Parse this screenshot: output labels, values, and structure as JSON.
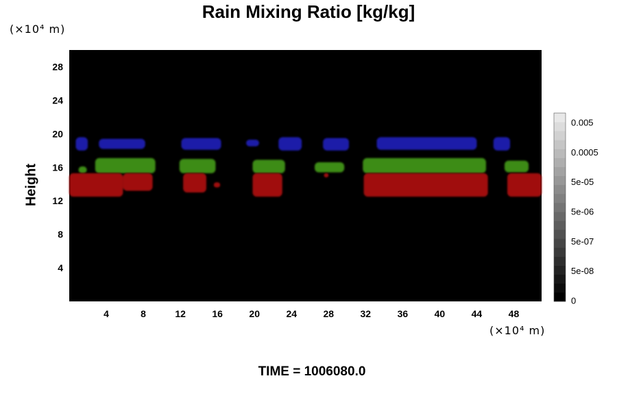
{
  "chart_data": {
    "type": "heatmap",
    "title": "Rain Mixing Ratio [kg/kg]",
    "ylabel": "Height",
    "x_unit": "(×10⁴ m)",
    "y_unit": "(×10⁴ m)",
    "footer": "TIME = 1006080.0",
    "xlim": [
      0,
      51
    ],
    "ylim": [
      0,
      30
    ],
    "x_ticks": [
      4,
      8,
      12,
      16,
      20,
      24,
      28,
      32,
      36,
      40,
      44,
      48
    ],
    "y_ticks": [
      4,
      8,
      12,
      16,
      20,
      24,
      28
    ],
    "background_color": "#000000",
    "colorbar": {
      "ticks": [
        "0",
        "5e-08",
        "5e-07",
        "5e-06",
        "5e-05",
        "0.0005",
        "0.005"
      ],
      "color_low": "#000000",
      "color_high": "#e8e8e8",
      "levels": 21
    },
    "bands": [
      {
        "name": "blue",
        "color": "#1a1aa8",
        "blobs": [
          {
            "x0": 0.7,
            "x1": 2.0,
            "y0": 18.0,
            "y1": 19.6
          },
          {
            "x0": 3.2,
            "x1": 8.2,
            "y0": 18.2,
            "y1": 19.4
          },
          {
            "x0": 12.1,
            "x1": 16.4,
            "y0": 18.1,
            "y1": 19.5
          },
          {
            "x0": 19.1,
            "x1": 20.5,
            "y0": 18.5,
            "y1": 19.3
          },
          {
            "x0": 22.6,
            "x1": 25.1,
            "y0": 18.0,
            "y1": 19.6
          },
          {
            "x0": 27.4,
            "x1": 30.2,
            "y0": 18.0,
            "y1": 19.5
          },
          {
            "x0": 33.2,
            "x1": 44.0,
            "y0": 18.1,
            "y1": 19.6
          },
          {
            "x0": 45.8,
            "x1": 47.6,
            "y0": 18.0,
            "y1": 19.6
          }
        ]
      },
      {
        "name": "green",
        "color": "#3c8c14",
        "blobs": [
          {
            "x0": 1.0,
            "x1": 1.9,
            "y0": 15.3,
            "y1": 16.1
          },
          {
            "x0": 2.8,
            "x1": 9.3,
            "y0": 15.3,
            "y1": 17.1
          },
          {
            "x0": 11.9,
            "x1": 15.8,
            "y0": 15.3,
            "y1": 17.0
          },
          {
            "x0": 19.8,
            "x1": 23.3,
            "y0": 15.3,
            "y1": 16.9
          },
          {
            "x0": 26.5,
            "x1": 29.7,
            "y0": 15.4,
            "y1": 16.6
          },
          {
            "x0": 31.7,
            "x1": 45.0,
            "y0": 15.3,
            "y1": 17.1
          },
          {
            "x0": 47.0,
            "x1": 49.6,
            "y0": 15.4,
            "y1": 16.8
          }
        ]
      },
      {
        "name": "red",
        "color": "#a01010",
        "blobs": [
          {
            "x0": 0.0,
            "x1": 5.8,
            "y0": 12.5,
            "y1": 15.3
          },
          {
            "x0": 5.8,
            "x1": 9.0,
            "y0": 13.2,
            "y1": 15.3
          },
          {
            "x0": 12.3,
            "x1": 14.8,
            "y0": 13.0,
            "y1": 15.3
          },
          {
            "x0": 15.6,
            "x1": 16.3,
            "y0": 13.6,
            "y1": 14.2
          },
          {
            "x0": 19.8,
            "x1": 23.0,
            "y0": 12.5,
            "y1": 15.3
          },
          {
            "x0": 27.5,
            "x1": 28.0,
            "y0": 14.8,
            "y1": 15.3
          },
          {
            "x0": 31.8,
            "x1": 45.2,
            "y0": 12.5,
            "y1": 15.3
          },
          {
            "x0": 47.3,
            "x1": 51.0,
            "y0": 12.5,
            "y1": 15.3
          }
        ]
      }
    ]
  }
}
